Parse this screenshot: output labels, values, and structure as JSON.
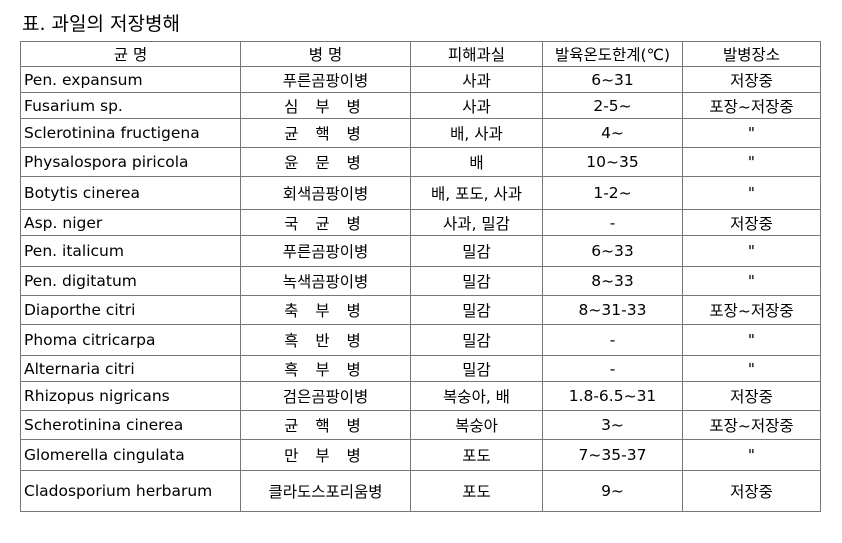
{
  "caption": "표. 과일의 저장병해",
  "table": {
    "headers": {
      "pathogen": "균 명",
      "disease": "병 명",
      "host": "피해과실",
      "temp": "발육온도한계(℃)",
      "stage": "발병장소"
    },
    "rows": [
      {
        "pathogen": "Pen. expansum",
        "disease": "푸른곰팡이병",
        "host": "사과",
        "temp": "6~31",
        "stage": "저장중"
      },
      {
        "pathogen": "Fusarium sp.",
        "disease": "심 부 병",
        "host": "사과",
        "temp": "2-5~",
        "stage": "포장~저장중"
      },
      {
        "pathogen": "Sclerotinina fructigena",
        "disease": "균 핵 병",
        "host": "배, 사과",
        "temp": "4~",
        "stage": "\""
      },
      {
        "pathogen": "Physalospora piricola",
        "disease": "윤 문 병",
        "host": "배",
        "temp": "10~35",
        "stage": "\""
      },
      {
        "pathogen": "Botytis cinerea",
        "disease": "회색곰팡이병",
        "host": "배, 포도, 사과",
        "temp": "1-2~",
        "stage": "\""
      },
      {
        "pathogen": "Asp. niger",
        "disease": "국 균 병",
        "host": "사과, 밀감",
        "temp": "-",
        "stage": "저장중"
      },
      {
        "pathogen": "Pen. italicum",
        "disease": "푸른곰팡이병",
        "host": "밀감",
        "temp": "6~33",
        "stage": "\""
      },
      {
        "pathogen": "Pen. digitatum",
        "disease": "녹색곰팡이병",
        "host": "밀감",
        "temp": "8~33",
        "stage": "\""
      },
      {
        "pathogen": "Diaporthe citri",
        "disease": "축 부 병",
        "host": "밀감",
        "temp": "8~31-33",
        "stage": "포장~저장중"
      },
      {
        "pathogen": "Phoma citricarpa",
        "disease": "흑 반 병",
        "host": "밀감",
        "temp": "-",
        "stage": "\""
      },
      {
        "pathogen": "Alternaria citri",
        "disease": "흑 부 병",
        "host": "밀감",
        "temp": "-",
        "stage": "\""
      },
      {
        "pathogen": "Rhizopus nigricans",
        "disease": "검은곰팡이병",
        "host": "복숭아, 배",
        "temp": "1.8-6.5~31",
        "stage": "저장중"
      },
      {
        "pathogen": "Scherotinina cinerea",
        "disease": "균 핵 병",
        "host": "복숭아",
        "temp": "3~",
        "stage": "포장~저장중"
      },
      {
        "pathogen": "Glomerella cingulata",
        "disease": "만 부 병",
        "host": "포도",
        "temp": "7~35-37",
        "stage": "\""
      },
      {
        "pathogen": "Cladosporium herbarum",
        "disease": "클라도스포리움병",
        "host": "포도",
        "temp": "9~",
        "stage": "저장중"
      }
    ]
  }
}
